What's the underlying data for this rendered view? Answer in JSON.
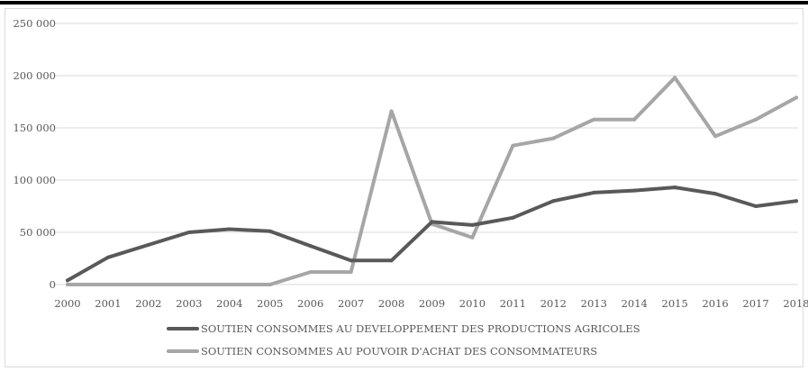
{
  "chart_data": {
    "type": "line",
    "title": "",
    "xlabel": "",
    "ylabel": "",
    "ylim": [
      0,
      250000
    ],
    "yticks": [
      "0",
      "50 000",
      "100 000",
      "150 000",
      "200 000",
      "250 000"
    ],
    "ytick_values": [
      0,
      50000,
      100000,
      150000,
      200000,
      250000
    ],
    "categories": [
      "2000",
      "2001",
      "2002",
      "2003",
      "2004",
      "2005",
      "2006",
      "2007",
      "2008",
      "2009",
      "2010",
      "2011",
      "2012",
      "2013",
      "2014",
      "2015",
      "2016",
      "2017",
      "2018"
    ],
    "grid": "horizontal",
    "legend_position": "bottom",
    "series": [
      {
        "name": "SOUTIEN CONSOMMES  AU DEVELOPPEMENT DES PRODUCTIONS AGRICOLES",
        "color": "#595959",
        "values": [
          4000,
          26000,
          38000,
          50000,
          53000,
          51000,
          37000,
          23000,
          23000,
          60000,
          57000,
          64000,
          80000,
          88000,
          90000,
          93000,
          87000,
          75000,
          80000
        ]
      },
      {
        "name": "SOUTIEN CONSOMMES  AU POUVOIR D'ACHAT DES CONSOMMATEURS",
        "color": "#a6a6a6",
        "values": [
          0,
          0,
          0,
          0,
          0,
          0,
          12000,
          12000,
          166000,
          58000,
          45000,
          133000,
          140000,
          158000,
          158000,
          198000,
          142000,
          158000,
          179000
        ]
      }
    ]
  }
}
